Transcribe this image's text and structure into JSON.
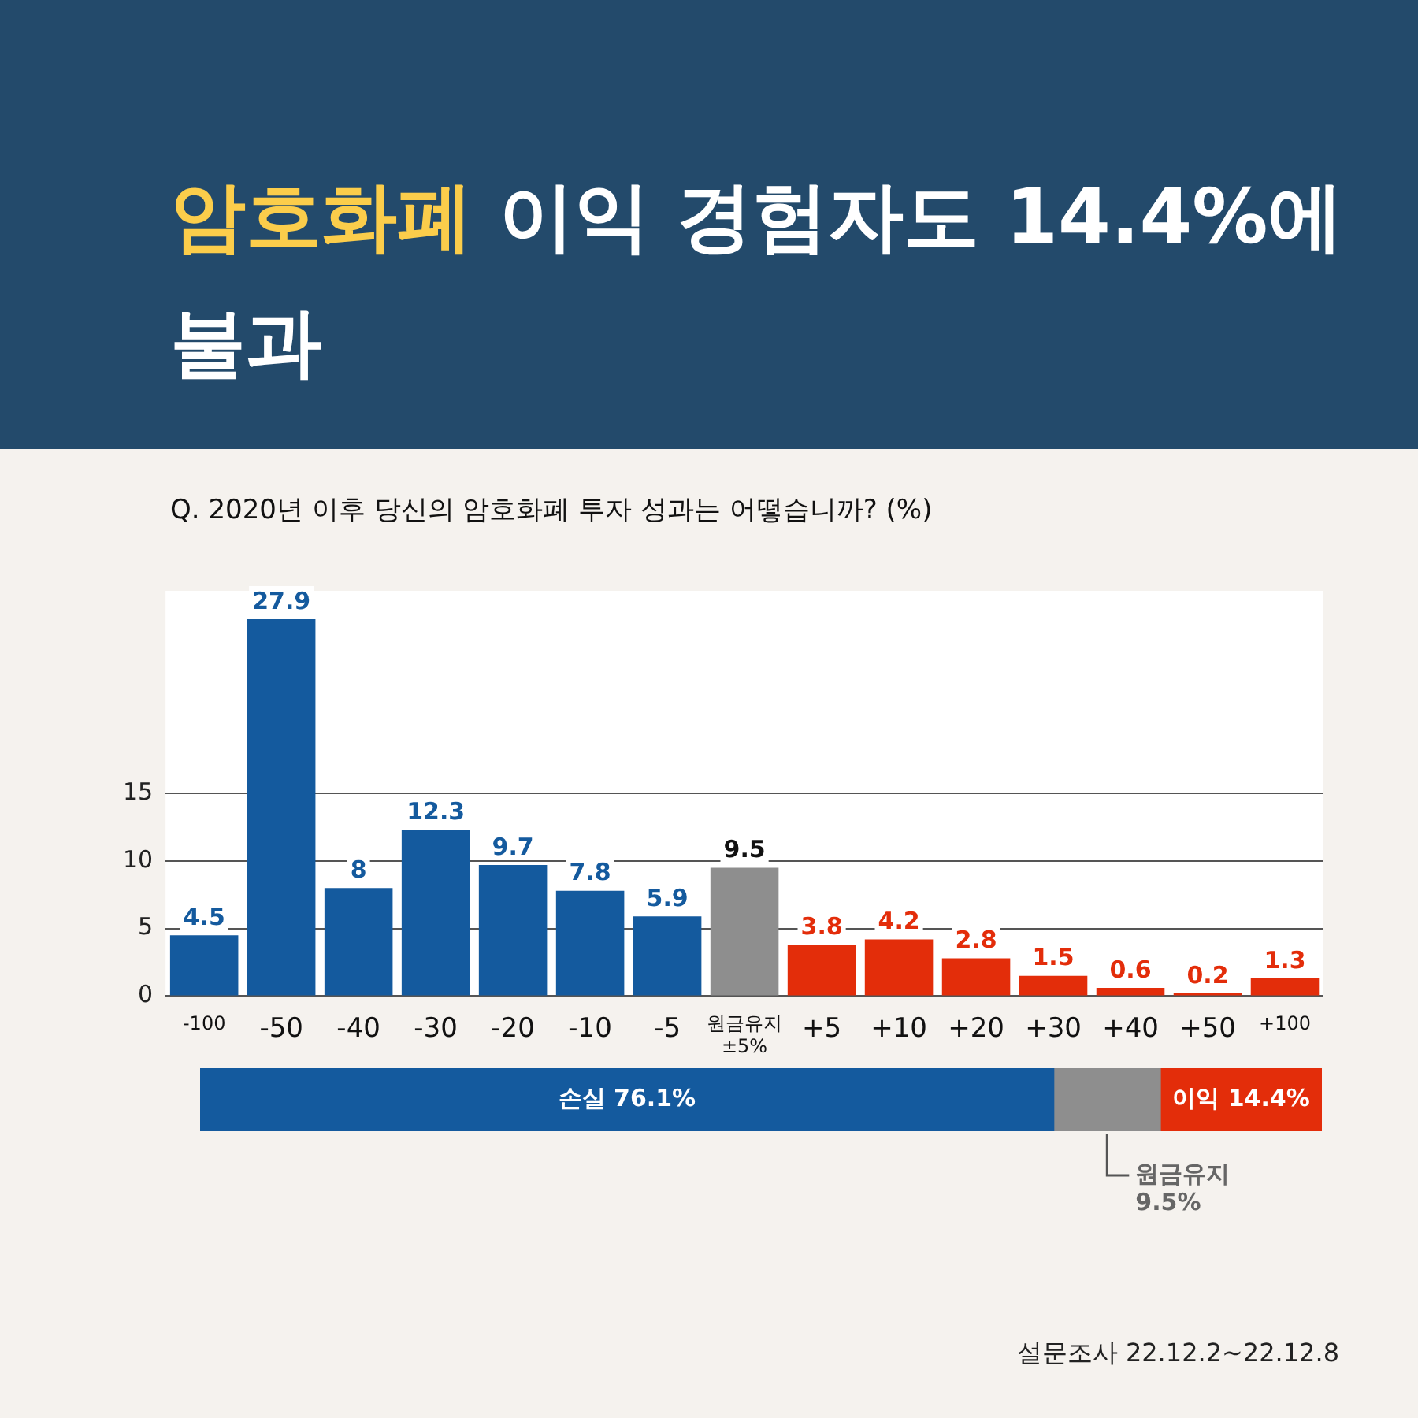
{
  "chart_data": [
    {
      "type": "bar",
      "title": "암호화폐 이익 경험자도 14.4%에 불과",
      "subtitle": "Q. 2020년 이후 당신의 암호화폐 투자 성과는 어떻습니까? (%)",
      "categories": [
        "-100",
        "-50",
        "-40",
        "-30",
        "-20",
        "-10",
        "-5",
        "원금유지 ±5%",
        "+5",
        "+10",
        "+20",
        "+30",
        "+40",
        "+50",
        "+100"
      ],
      "values": [
        4.5,
        27.9,
        8,
        12.3,
        9.7,
        7.8,
        5.9,
        9.5,
        3.8,
        4.2,
        2.8,
        1.5,
        0.6,
        0.2,
        1.3
      ],
      "colors": [
        "#145a9e",
        "#145a9e",
        "#145a9e",
        "#145a9e",
        "#145a9e",
        "#145a9e",
        "#145a9e",
        "#8e8e8e",
        "#e32d0a",
        "#e32d0a",
        "#e32d0a",
        "#e32d0a",
        "#e32d0a",
        "#e32d0a",
        "#e32d0a"
      ],
      "ylim": [
        0,
        30
      ],
      "yticks": [
        0,
        5,
        10,
        15
      ],
      "grid": "y",
      "data_labels": true,
      "legend": false
    },
    {
      "type": "bar",
      "orientation": "horizontal",
      "stacked": true,
      "categories": [
        null
      ],
      "xlim": [
        0,
        100
      ],
      "legend": false,
      "series": [
        {
          "color": "#145a9e",
          "values": [
            76.1
          ],
          "value_labels": [
            "손실 76.1%"
          ]
        },
        {
          "color": "#8e8e8e",
          "values": [
            9.5
          ],
          "value_labels": [
            "원금유지 9.5%"
          ]
        },
        {
          "color": "#e32d0a",
          "values": [
            14.4
          ],
          "value_labels": [
            "이익 14.4%"
          ]
        }
      ],
      "annotations": [
        "설문조사 22.12.2~22.12.8"
      ]
    }
  ]
}
